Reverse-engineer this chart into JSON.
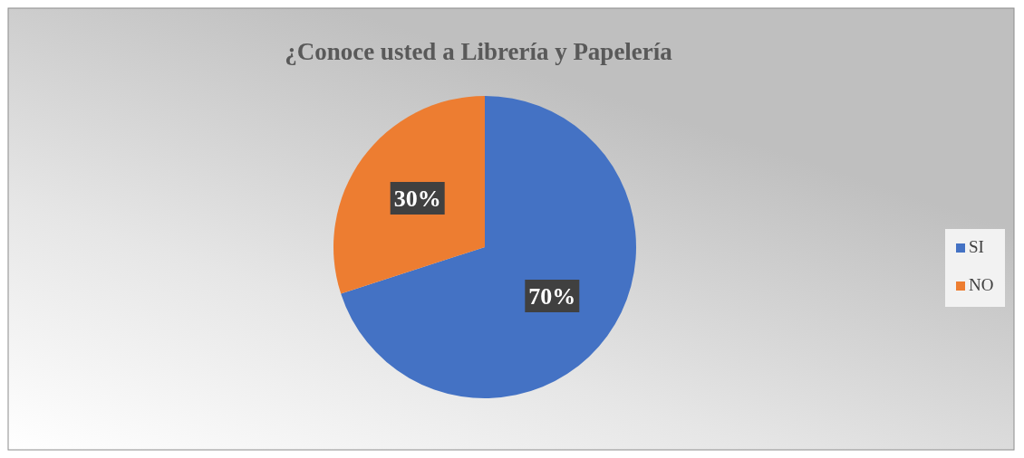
{
  "chart_data": {
    "type": "pie",
    "title": "¿Conoce usted a Librería y Papelería",
    "categories": [
      "SI",
      "NO"
    ],
    "values": [
      70,
      30
    ],
    "colors": [
      "#4472c4",
      "#ed7d31"
    ],
    "value_labels": [
      "70%",
      "30%"
    ],
    "legend": "right"
  }
}
